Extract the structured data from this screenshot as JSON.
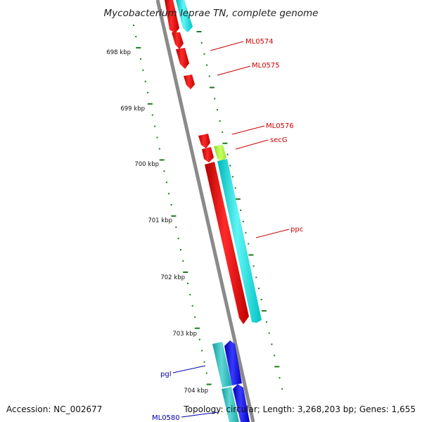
{
  "title": "Mycobacterium leprae TN, complete genome",
  "footer": {
    "accession": "Accession: NC_002677",
    "topology": "Topology: circular; Length: 3,268,203 bp; Genes: 1,655"
  },
  "scale_labels": [
    "698 kbp",
    "699 kbp",
    "700 kbp",
    "701 kbp",
    "702 kbp",
    "703 kbp",
    "704 kbp"
  ],
  "gene_labels": [
    {
      "id": "ML0574",
      "text": "ML0574",
      "color": "#cc0000"
    },
    {
      "id": "ML0575",
      "text": "ML0575",
      "color": "#cc0000"
    },
    {
      "id": "ML0576",
      "text": "ML0576",
      "color": "#cc0000"
    },
    {
      "id": "secG",
      "text": "secG",
      "color": "#cc0000"
    },
    {
      "id": "ppc",
      "text": "ppc",
      "color": "#cc0000"
    },
    {
      "id": "pgl",
      "text": "pgl",
      "color": "#0000aa"
    },
    {
      "id": "ML0580",
      "text": "ML0580",
      "color": "#0000aa"
    }
  ],
  "colors": {
    "backbone": "#8a8a8a",
    "tick": "#1f7a1f",
    "forward_gene": "#ee0000",
    "forward_cds": "#00e0e0",
    "reverse_gene": "#0000ee",
    "reverse_cds": "#22bbbb",
    "highlight": "#aaff33"
  }
}
